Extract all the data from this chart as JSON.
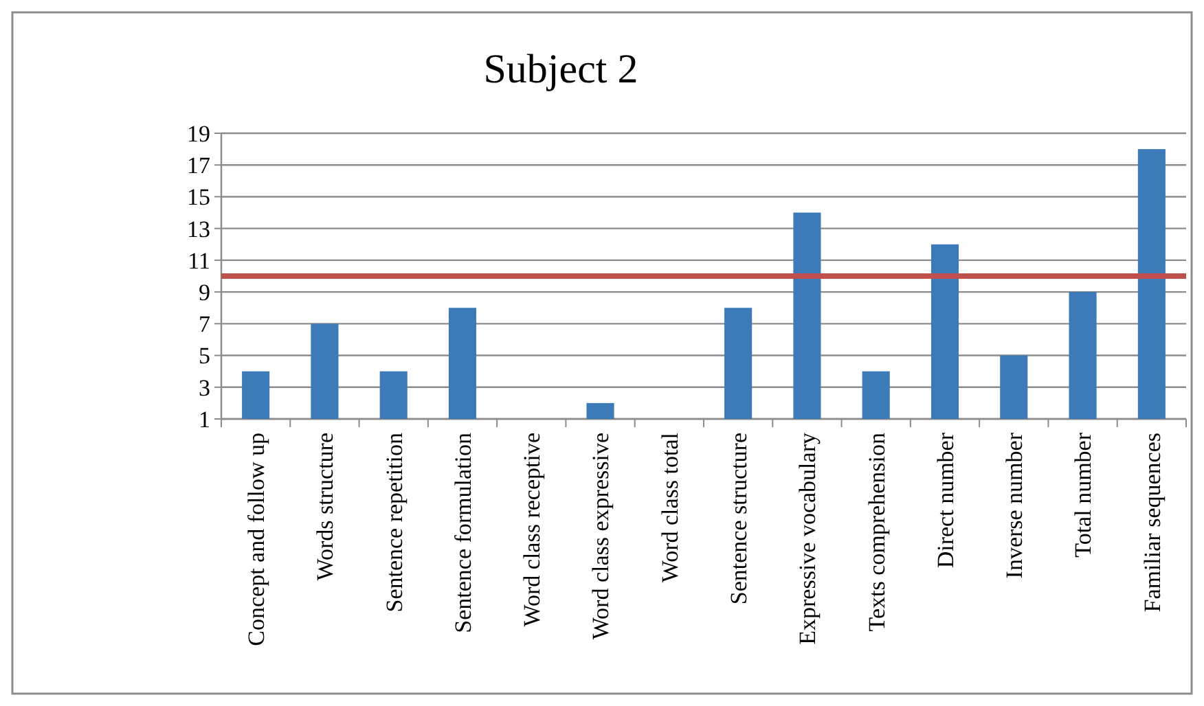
{
  "chart_data": {
    "type": "bar",
    "title": "Subject 2",
    "categories": [
      "Concept and follow up",
      "Words structure",
      "Sentence repetition",
      "Sentence formulation",
      "Word class receptive",
      "Word class expressive",
      "Word class total",
      "Sentence structure",
      "Expressive vocabulary",
      "Texts comprehension",
      "Direct number",
      "Inverse number",
      "Total number",
      "Familiar sequences"
    ],
    "values": [
      4,
      7,
      4,
      8,
      null,
      2,
      null,
      8,
      14,
      4,
      12,
      5,
      9,
      18
    ],
    "color": "#3d7ab8",
    "ylim": [
      1,
      19
    ],
    "yticks": [
      1,
      3,
      5,
      7,
      9,
      11,
      13,
      15,
      17,
      19
    ],
    "grid": "y",
    "ref_lines": [
      {
        "axis": "y",
        "value": 10,
        "color": "#c0504d"
      }
    ]
  }
}
